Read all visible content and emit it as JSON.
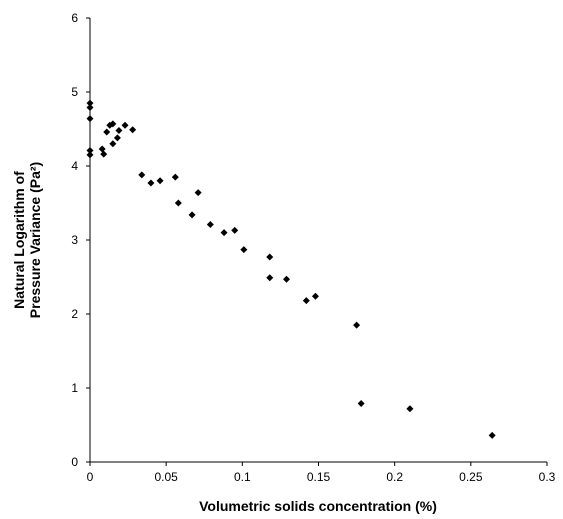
{
  "chart_data": {
    "type": "scatter",
    "title": "",
    "xlabel": "Volumetric solids  concentration (%)",
    "ylabel_lines": [
      "Natural Logarithm of",
      "Pressure Variance (Pa²)"
    ],
    "xlim": [
      0,
      0.3
    ],
    "ylim": [
      0,
      6
    ],
    "x_ticks": [
      0,
      0.05,
      0.1,
      0.15,
      0.2,
      0.25,
      0.3
    ],
    "x_tick_labels": [
      "0",
      "0.05",
      "0.1",
      "0.15",
      "0.2",
      "0.25",
      "0.3"
    ],
    "y_ticks": [
      0,
      1,
      2,
      3,
      4,
      5,
      6
    ],
    "y_tick_labels": [
      "0",
      "1",
      "2",
      "3",
      "4",
      "5",
      "6"
    ],
    "grid": false,
    "legend": "none",
    "marker": "diamond",
    "marker_color": "#000000",
    "series": [
      {
        "points": [
          [
            0.0,
            4.85
          ],
          [
            0.0,
            4.79
          ],
          [
            0.0,
            4.64
          ],
          [
            0.0,
            4.21
          ],
          [
            0.0,
            4.15
          ],
          [
            0.008,
            4.23
          ],
          [
            0.009,
            4.16
          ],
          [
            0.011,
            4.46
          ],
          [
            0.013,
            4.55
          ],
          [
            0.015,
            4.57
          ],
          [
            0.015,
            4.3
          ],
          [
            0.018,
            4.38
          ],
          [
            0.019,
            4.48
          ],
          [
            0.023,
            4.55
          ],
          [
            0.028,
            4.49
          ],
          [
            0.034,
            3.88
          ],
          [
            0.04,
            3.77
          ],
          [
            0.046,
            3.8
          ],
          [
            0.056,
            3.85
          ],
          [
            0.058,
            3.5
          ],
          [
            0.067,
            3.34
          ],
          [
            0.071,
            3.64
          ],
          [
            0.079,
            3.21
          ],
          [
            0.088,
            3.1
          ],
          [
            0.095,
            3.13
          ],
          [
            0.101,
            2.87
          ],
          [
            0.118,
            2.77
          ],
          [
            0.118,
            2.49
          ],
          [
            0.129,
            2.47
          ],
          [
            0.142,
            2.18
          ],
          [
            0.148,
            2.24
          ],
          [
            0.175,
            1.85
          ],
          [
            0.178,
            0.79
          ],
          [
            0.21,
            0.72
          ],
          [
            0.264,
            0.36
          ]
        ]
      }
    ]
  }
}
